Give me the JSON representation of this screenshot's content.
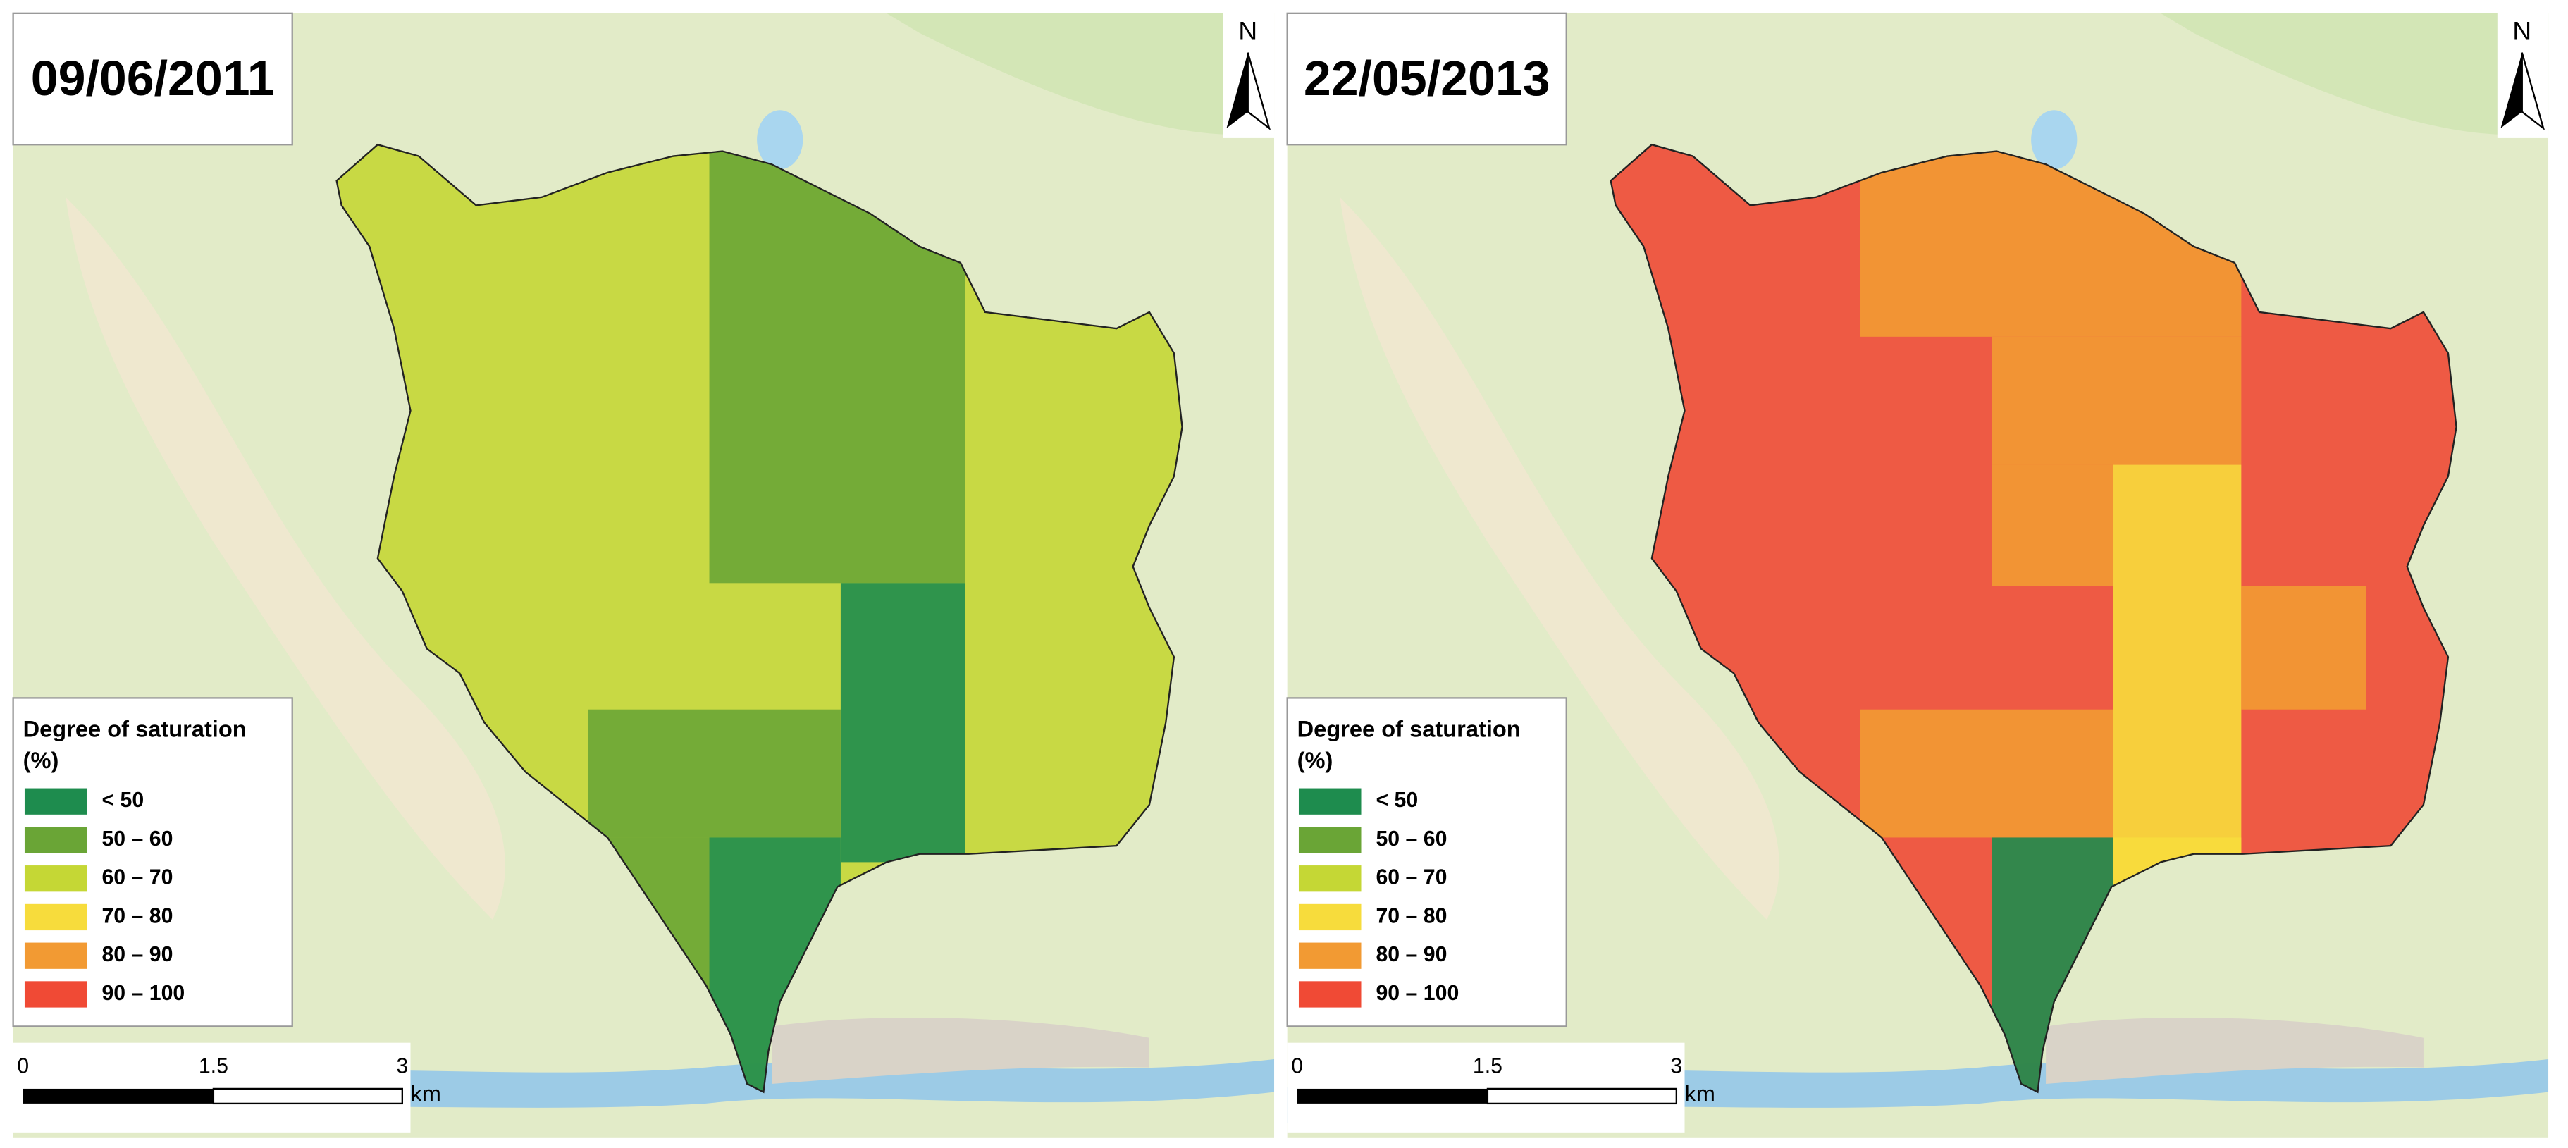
{
  "panels": [
    {
      "date": "09/06/2011"
    },
    {
      "date": "22/05/2013"
    }
  ],
  "north": "N",
  "legend": {
    "title": "Degree of saturation",
    "unit": "(%)",
    "classes": [
      {
        "label": "< 50",
        "color": "#1e8c4e"
      },
      {
        "label": "50 – 60",
        "color": "#6aa536"
      },
      {
        "label": "60 – 70",
        "color": "#c5d735"
      },
      {
        "label": "70 – 80",
        "color": "#f7dc3c"
      },
      {
        "label": "80 – 90",
        "color": "#f29a33"
      },
      {
        "label": "90 – 100",
        "color": "#f04a35"
      }
    ]
  },
  "scale_bar": {
    "labels": [
      "0",
      "1.5",
      "3"
    ],
    "unit": "km"
  }
}
